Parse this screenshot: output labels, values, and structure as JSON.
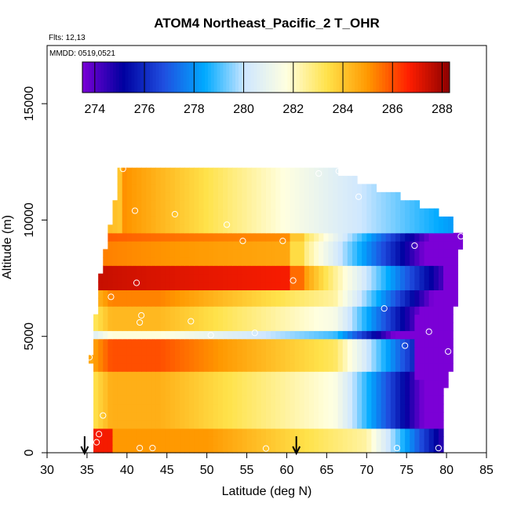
{
  "chart_data": {
    "type": "heatmap",
    "title": "ATOM4 Northeast_Pacific_2 T_OHR",
    "annotations": [
      "Flts: 12,13",
      "MMDD: 0519,0521"
    ],
    "xlabel": "Latitude (deg N)",
    "ylabel": "Altitude (m)",
    "xlim": [
      30,
      85
    ],
    "ylim": [
      0,
      17500
    ],
    "x_ticks": [
      30,
      35,
      40,
      45,
      50,
      55,
      60,
      65,
      70,
      75,
      80,
      85
    ],
    "y_ticks": [
      0,
      5000,
      10000,
      15000
    ],
    "grid": false,
    "colorbar": {
      "placement": "top, inside plot",
      "range": [
        273.5,
        288.3
      ],
      "ticks": [
        274,
        276,
        278,
        280,
        282,
        284,
        286,
        288
      ],
      "colors": [
        "#7b00d6",
        "#0000a0",
        "#1f4fe0",
        "#00aaff",
        "#cfe7ff",
        "#ffffe0",
        "#ffe24a",
        "#ff9800",
        "#ff1e00",
        "#8b0000"
      ]
    },
    "field": {
      "cell_width_deg": 0.6,
      "cell_height_m": 350,
      "upper_boundary": [
        [
          35.8,
          12400
        ],
        [
          36.0,
          11000
        ],
        [
          36.8,
          10000
        ],
        [
          37.5,
          8500
        ],
        [
          38.5,
          7000
        ],
        [
          39.5,
          12400
        ],
        [
          66.5,
          12400
        ],
        [
          66.5,
          12000
        ],
        [
          69,
          12000
        ],
        [
          69,
          11600
        ],
        [
          71.5,
          11600
        ],
        [
          71.5,
          11200
        ],
        [
          74,
          11200
        ],
        [
          74,
          10800
        ],
        [
          76.5,
          10800
        ],
        [
          76.5,
          10400
        ],
        [
          79,
          10400
        ],
        [
          79,
          10000
        ],
        [
          81,
          10000
        ],
        [
          81,
          9600
        ],
        [
          82,
          9600
        ]
      ],
      "north_edge": [
        [
          0,
          79.5
        ],
        [
          2000,
          79.5
        ],
        [
          3000,
          80
        ],
        [
          4000,
          81
        ],
        [
          5000,
          80.5
        ],
        [
          6000,
          81
        ],
        [
          8000,
          81.5
        ],
        [
          9600,
          82
        ]
      ],
      "south_edge": [
        [
          0,
          36
        ],
        [
          3500,
          35.8
        ],
        [
          4300,
          34.8
        ],
        [
          5000,
          35.5
        ],
        [
          6000,
          36
        ],
        [
          7000,
          36.5
        ],
        [
          8500,
          37
        ],
        [
          10000,
          37.5
        ],
        [
          11000,
          38
        ],
        [
          12400,
          39
        ]
      ]
    },
    "flight_points": [
      {
        "lat": 39.5,
        "alt": 12200
      },
      {
        "lat": 64,
        "alt": 12000
      },
      {
        "lat": 66.5,
        "alt": 12100
      },
      {
        "lat": 69,
        "alt": 11000
      },
      {
        "lat": 41,
        "alt": 10400
      },
      {
        "lat": 46,
        "alt": 10250
      },
      {
        "lat": 52.5,
        "alt": 9800
      },
      {
        "lat": 54.5,
        "alt": 9100
      },
      {
        "lat": 59.5,
        "alt": 9100
      },
      {
        "lat": 76,
        "alt": 8900
      },
      {
        "lat": 81.8,
        "alt": 9300
      },
      {
        "lat": 41.2,
        "alt": 7300
      },
      {
        "lat": 60.8,
        "alt": 7400
      },
      {
        "lat": 38,
        "alt": 6700
      },
      {
        "lat": 72.2,
        "alt": 6200
      },
      {
        "lat": 41.8,
        "alt": 5900
      },
      {
        "lat": 41.6,
        "alt": 5600
      },
      {
        "lat": 48,
        "alt": 5650
      },
      {
        "lat": 77.8,
        "alt": 5200
      },
      {
        "lat": 50.5,
        "alt": 5050
      },
      {
        "lat": 56,
        "alt": 5150
      },
      {
        "lat": 74.8,
        "alt": 4600
      },
      {
        "lat": 80.2,
        "alt": 4350
      },
      {
        "lat": 35.3,
        "alt": 4100
      },
      {
        "lat": 37,
        "alt": 1600
      },
      {
        "lat": 36.5,
        "alt": 800
      },
      {
        "lat": 36.2,
        "alt": 450
      },
      {
        "lat": 41.6,
        "alt": 200
      },
      {
        "lat": 43.2,
        "alt": 200
      },
      {
        "lat": 57.4,
        "alt": 180
      },
      {
        "lat": 73.8,
        "alt": 200
      },
      {
        "lat": 79,
        "alt": 200
      }
    ],
    "arrows_at_latitude": [
      34.7,
      61.2
    ]
  }
}
